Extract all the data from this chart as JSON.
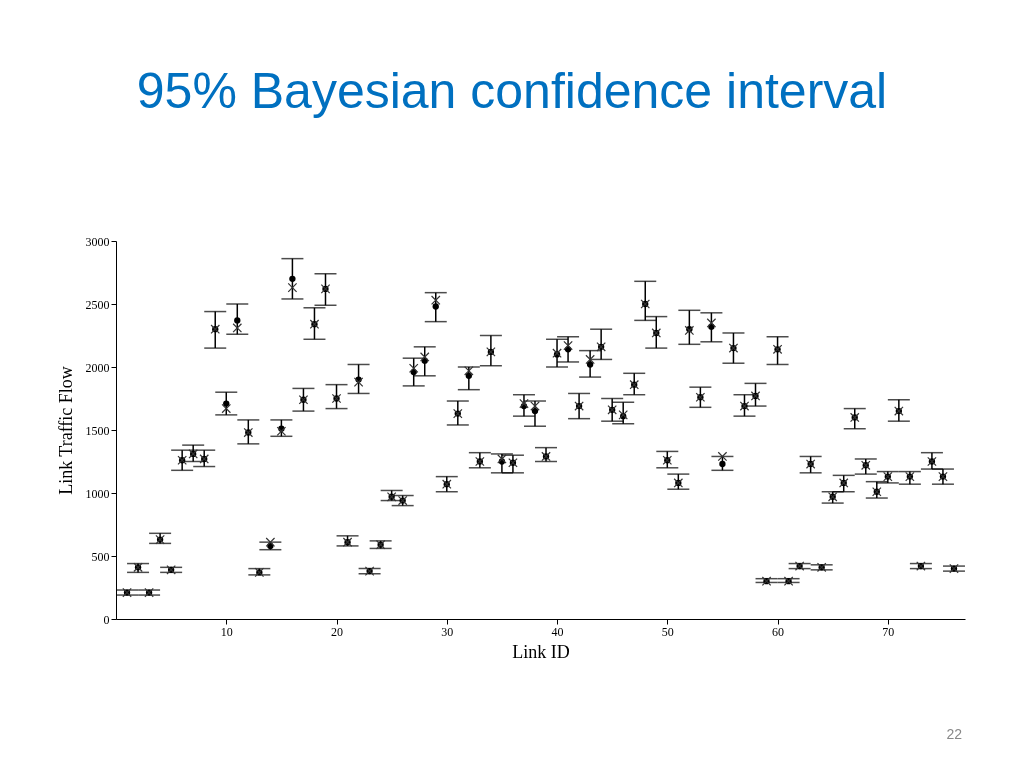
{
  "chart_data": {
    "type": "scatter",
    "title": "95% Bayesian confidence interval",
    "xlabel": "Link ID",
    "ylabel": "Link Traffic Flow",
    "x": [
      1,
      2,
      3,
      4,
      5,
      6,
      7,
      8,
      9,
      10,
      11,
      12,
      13,
      14,
      15,
      16,
      17,
      18,
      19,
      20,
      21,
      22,
      23,
      24,
      25,
      26,
      27,
      28,
      29,
      30,
      31,
      32,
      33,
      34,
      35,
      36,
      37,
      38,
      39,
      40,
      41,
      42,
      43,
      44,
      45,
      46,
      47,
      48,
      49,
      50,
      51,
      52,
      53,
      54,
      55,
      56,
      57,
      58,
      59,
      60,
      61,
      62,
      63,
      64,
      65,
      66,
      67,
      68,
      69,
      70,
      71,
      72,
      73,
      74,
      75,
      76
    ],
    "xlim": [
      0,
      77
    ],
    "xticks": [
      10,
      20,
      30,
      40,
      50,
      60,
      70
    ],
    "ylim": [
      0,
      3000
    ],
    "yticks": [
      0,
      500,
      1000,
      1500,
      2000,
      2500,
      3000
    ],
    "grid": false,
    "series": [
      {
        "color": "#000000",
        "marker": "circle",
        "values": [
          210,
          410,
          210,
          630,
          390,
          1260,
          1310,
          1270,
          2300,
          1710,
          2370,
          1480,
          370,
          580,
          1510,
          2700,
          1740,
          2340,
          2620,
          1750,
          610,
          1900,
          380,
          590,
          970,
          940,
          1960,
          2050,
          2480,
          1070,
          1630,
          1930,
          1250,
          2120,
          1250,
          1240,
          1690,
          1650,
          1290,
          2100,
          2140,
          1690,
          2020,
          2160,
          1660,
          1610,
          1860,
          2500,
          2270,
          1260,
          1080,
          2300,
          1760,
          2320,
          1230,
          2150,
          1690,
          1770,
          300,
          2140,
          300,
          420,
          1230,
          410,
          970,
          1080,
          1600,
          1220,
          1010,
          1130,
          1650,
          1130,
          420,
          1250,
          1130,
          400
        ],
        "errors": [
          [
            190,
            230
          ],
          [
            370,
            440
          ],
          [
            190,
            230
          ],
          [
            600,
            680
          ],
          [
            370,
            410
          ],
          [
            1180,
            1340
          ],
          [
            1250,
            1380
          ],
          [
            1210,
            1340
          ],
          [
            2150,
            2440
          ],
          [
            1620,
            1800
          ],
          [
            2260,
            2500
          ],
          [
            1390,
            1580
          ],
          [
            350,
            400
          ],
          [
            550,
            610
          ],
          [
            1450,
            1580
          ],
          [
            2540,
            2860
          ],
          [
            1650,
            1830
          ],
          [
            2220,
            2470
          ],
          [
            2490,
            2740
          ],
          [
            1670,
            1860
          ],
          [
            580,
            660
          ],
          [
            1790,
            2020
          ],
          [
            360,
            400
          ],
          [
            560,
            620
          ],
          [
            940,
            1020
          ],
          [
            900,
            980
          ],
          [
            1850,
            2070
          ],
          [
            1930,
            2160
          ],
          [
            2360,
            2590
          ],
          [
            1010,
            1130
          ],
          [
            1540,
            1730
          ],
          [
            1820,
            2000
          ],
          [
            1200,
            1320
          ],
          [
            2010,
            2250
          ],
          [
            1160,
            1310
          ],
          [
            1160,
            1300
          ],
          [
            1610,
            1780
          ],
          [
            1530,
            1730
          ],
          [
            1250,
            1360
          ],
          [
            2000,
            2220
          ],
          [
            2040,
            2240
          ],
          [
            1590,
            1790
          ],
          [
            1920,
            2130
          ],
          [
            2060,
            2300
          ],
          [
            1570,
            1750
          ],
          [
            1550,
            1720
          ],
          [
            1780,
            1950
          ],
          [
            2370,
            2680
          ],
          [
            2150,
            2400
          ],
          [
            1200,
            1330
          ],
          [
            1030,
            1150
          ],
          [
            2180,
            2450
          ],
          [
            1680,
            1840
          ],
          [
            2200,
            2430
          ],
          [
            1180,
            1290
          ],
          [
            2030,
            2270
          ],
          [
            1610,
            1780
          ],
          [
            1690,
            1870
          ],
          [
            290,
            320
          ],
          [
            2020,
            2240
          ],
          [
            290,
            320
          ],
          [
            400,
            440
          ],
          [
            1160,
            1290
          ],
          [
            390,
            430
          ],
          [
            920,
            1010
          ],
          [
            1010,
            1140
          ],
          [
            1510,
            1670
          ],
          [
            1150,
            1270
          ],
          [
            960,
            1090
          ],
          [
            1080,
            1170
          ],
          [
            1570,
            1740
          ],
          [
            1070,
            1170
          ],
          [
            400,
            440
          ],
          [
            1190,
            1320
          ],
          [
            1070,
            1190
          ],
          [
            380,
            420
          ]
        ]
      },
      {
        "color": "#333333",
        "marker": "cross",
        "values": [
          210,
          410,
          210,
          630,
          390,
          1260,
          1310,
          1270,
          2300,
          1670,
          2310,
          1480,
          370,
          610,
          1490,
          2630,
          1740,
          2340,
          2620,
          1750,
          610,
          1880,
          380,
          590,
          970,
          940,
          1990,
          2080,
          2530,
          1070,
          1630,
          1970,
          1250,
          2120,
          1270,
          1240,
          1710,
          1690,
          1290,
          2110,
          2170,
          1690,
          2060,
          2160,
          1660,
          1620,
          1860,
          2500,
          2270,
          1260,
          1080,
          2290,
          1760,
          2350,
          1290,
          2150,
          1690,
          1770,
          300,
          2140,
          300,
          420,
          1230,
          410,
          970,
          1080,
          1600,
          1220,
          1010,
          1130,
          1650,
          1130,
          420,
          1250,
          1130,
          400
        ]
      }
    ],
    "annotations": [
      "22"
    ]
  }
}
